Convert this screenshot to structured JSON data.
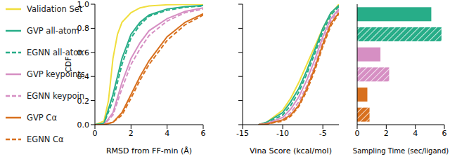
{
  "chart_data": [
    {
      "type": "line",
      "x_label": "RMSD from FF-min (Å)",
      "y_label": "CDF",
      "legend": "left",
      "xlim": [
        0,
        6
      ],
      "xticks": [
        0,
        2,
        4,
        6
      ],
      "ylim": [
        0,
        1
      ],
      "yticks": [
        {
          "value": 0,
          "label": "0.0"
        },
        0.2,
        0.4,
        0.6,
        0.8,
        {
          "value": 1,
          "label": "1.0"
        }
      ],
      "series": [
        {
          "name": "Validation Set",
          "color": "#f0de3c",
          "line_style": "solid",
          "x": [
            0,
            0.5,
            0.75,
            1,
            1.25,
            1.5,
            2,
            2.5,
            3,
            4,
            6
          ],
          "values": [
            0,
            0.03,
            0.2,
            0.55,
            0.75,
            0.85,
            0.93,
            0.97,
            0.985,
            0.995,
            1.0
          ]
        },
        {
          "name": "GVP all-atom",
          "color": "#27ad88",
          "line_style": "solid",
          "x": [
            0,
            0.5,
            1,
            1.5,
            2,
            2.5,
            3,
            4,
            5,
            6
          ],
          "values": [
            0,
            0.01,
            0.25,
            0.55,
            0.75,
            0.85,
            0.91,
            0.96,
            0.98,
            0.99
          ]
        },
        {
          "name": "EGNN all-atom",
          "color": "#27ad88",
          "line_style": "dashed",
          "x": [
            0,
            0.5,
            1,
            1.5,
            2,
            2.5,
            3,
            4,
            5,
            6
          ],
          "values": [
            0,
            0.01,
            0.2,
            0.5,
            0.72,
            0.83,
            0.9,
            0.95,
            0.975,
            0.985
          ]
        },
        {
          "name": "GVP keypoints",
          "color": "#d68fc3",
          "line_style": "solid",
          "x": [
            0,
            0.5,
            1,
            1.5,
            2,
            2.5,
            3,
            4,
            5,
            6
          ],
          "values": [
            0,
            0,
            0.1,
            0.35,
            0.55,
            0.68,
            0.78,
            0.88,
            0.94,
            0.97
          ]
        },
        {
          "name": "EGNN keypoints",
          "color": "#d68fc3",
          "line_style": "dashed",
          "x": [
            0,
            0.5,
            1,
            1.5,
            2,
            2.5,
            3,
            4,
            5,
            6
          ],
          "values": [
            0,
            0,
            0.08,
            0.3,
            0.5,
            0.63,
            0.74,
            0.86,
            0.93,
            0.96
          ]
        },
        {
          "name": "GVP Cα",
          "color": "#d8701e",
          "line_style": "solid",
          "x": [
            0,
            0.5,
            1,
            1.5,
            2,
            2.5,
            3,
            4,
            5,
            6
          ],
          "values": [
            0,
            0,
            0.02,
            0.1,
            0.25,
            0.4,
            0.53,
            0.73,
            0.85,
            0.92
          ]
        },
        {
          "name": "EGNN Cα",
          "color": "#d8701e",
          "line_style": "dashed",
          "x": [
            0,
            0.5,
            1,
            1.5,
            2,
            2.5,
            3,
            4,
            5,
            6
          ],
          "values": [
            0,
            0,
            0.02,
            0.08,
            0.22,
            0.37,
            0.5,
            0.7,
            0.83,
            0.91
          ]
        }
      ]
    },
    {
      "type": "line",
      "x_label": "Vina Score (kcal/mol)",
      "tick_labels": "x",
      "xlim": [
        -15,
        -3
      ],
      "xticks": [
        -15,
        -10,
        -5
      ],
      "ylim": [
        0,
        1
      ],
      "yticks": [
        0,
        0.2,
        0.4,
        0.6,
        0.8,
        1
      ],
      "series": [
        {
          "name": "Validation Set",
          "color": "#f0de3c",
          "line_style": "solid",
          "x": [
            -13,
            -12,
            -10,
            -9,
            -8,
            -7,
            -6,
            -5,
            -4,
            -3
          ],
          "values": [
            0,
            0.02,
            0.12,
            0.22,
            0.35,
            0.5,
            0.65,
            0.8,
            0.92,
            1.0
          ]
        },
        {
          "name": "GVP all-atom",
          "color": "#27ad88",
          "line_style": "solid",
          "x": [
            -13,
            -12,
            -10,
            -9,
            -8,
            -7,
            -6,
            -5,
            -4,
            -3
          ],
          "values": [
            0,
            0.02,
            0.1,
            0.19,
            0.3,
            0.45,
            0.62,
            0.8,
            0.93,
            0.99
          ]
        },
        {
          "name": "EGNN all-atom",
          "color": "#27ad88",
          "line_style": "dashed",
          "x": [
            -13,
            -12,
            -10,
            -9,
            -8,
            -7,
            -6,
            -5,
            -4,
            -3
          ],
          "values": [
            0,
            0.015,
            0.08,
            0.16,
            0.27,
            0.42,
            0.59,
            0.77,
            0.91,
            0.98
          ]
        },
        {
          "name": "GVP keypoints",
          "color": "#d68fc3",
          "line_style": "solid",
          "x": [
            -13,
            -12,
            -10,
            -9,
            -8,
            -7,
            -6,
            -5,
            -4,
            -3
          ],
          "values": [
            0,
            0.01,
            0.06,
            0.13,
            0.23,
            0.37,
            0.54,
            0.73,
            0.88,
            0.96
          ]
        },
        {
          "name": "EGNN keypoints",
          "color": "#d68fc3",
          "line_style": "dashed",
          "x": [
            -13,
            -12,
            -10,
            -9,
            -8,
            -7,
            -6,
            -5,
            -4,
            -3
          ],
          "values": [
            0,
            0.01,
            0.04,
            0.1,
            0.19,
            0.32,
            0.49,
            0.69,
            0.86,
            0.95
          ]
        },
        {
          "name": "GVP Cα",
          "color": "#d8701e",
          "line_style": "solid",
          "x": [
            -13,
            -12,
            -10,
            -9,
            -8,
            -7,
            -6,
            -5,
            -4,
            -3
          ],
          "values": [
            0,
            0.005,
            0.04,
            0.08,
            0.16,
            0.3,
            0.47,
            0.67,
            0.84,
            0.93
          ]
        },
        {
          "name": "EGNN Cα",
          "color": "#d8701e",
          "line_style": "dashed",
          "x": [
            -13,
            -12,
            -10,
            -9,
            -8,
            -7,
            -6,
            -5,
            -4,
            -3
          ],
          "values": [
            0,
            0.005,
            0.03,
            0.07,
            0.15,
            0.28,
            0.45,
            0.65,
            0.82,
            0.92
          ]
        }
      ]
    },
    {
      "type": "bar",
      "orientation": "horizontal",
      "x_label": "Sampling Time (sec/ligand)",
      "tick_labels": "x",
      "xlim": [
        0,
        6
      ],
      "xticks": [
        0,
        2,
        4,
        6
      ],
      "categories": [
        null,
        null,
        null,
        null,
        null,
        null
      ],
      "values": [
        5.1,
        5.8,
        1.6,
        2.2,
        0.7,
        0.85
      ],
      "colors": [
        "#27ad88",
        "#27ad88",
        "#d68fc3",
        "#d68fc3",
        "#d8701e",
        "#d8701e"
      ]
    }
  ]
}
